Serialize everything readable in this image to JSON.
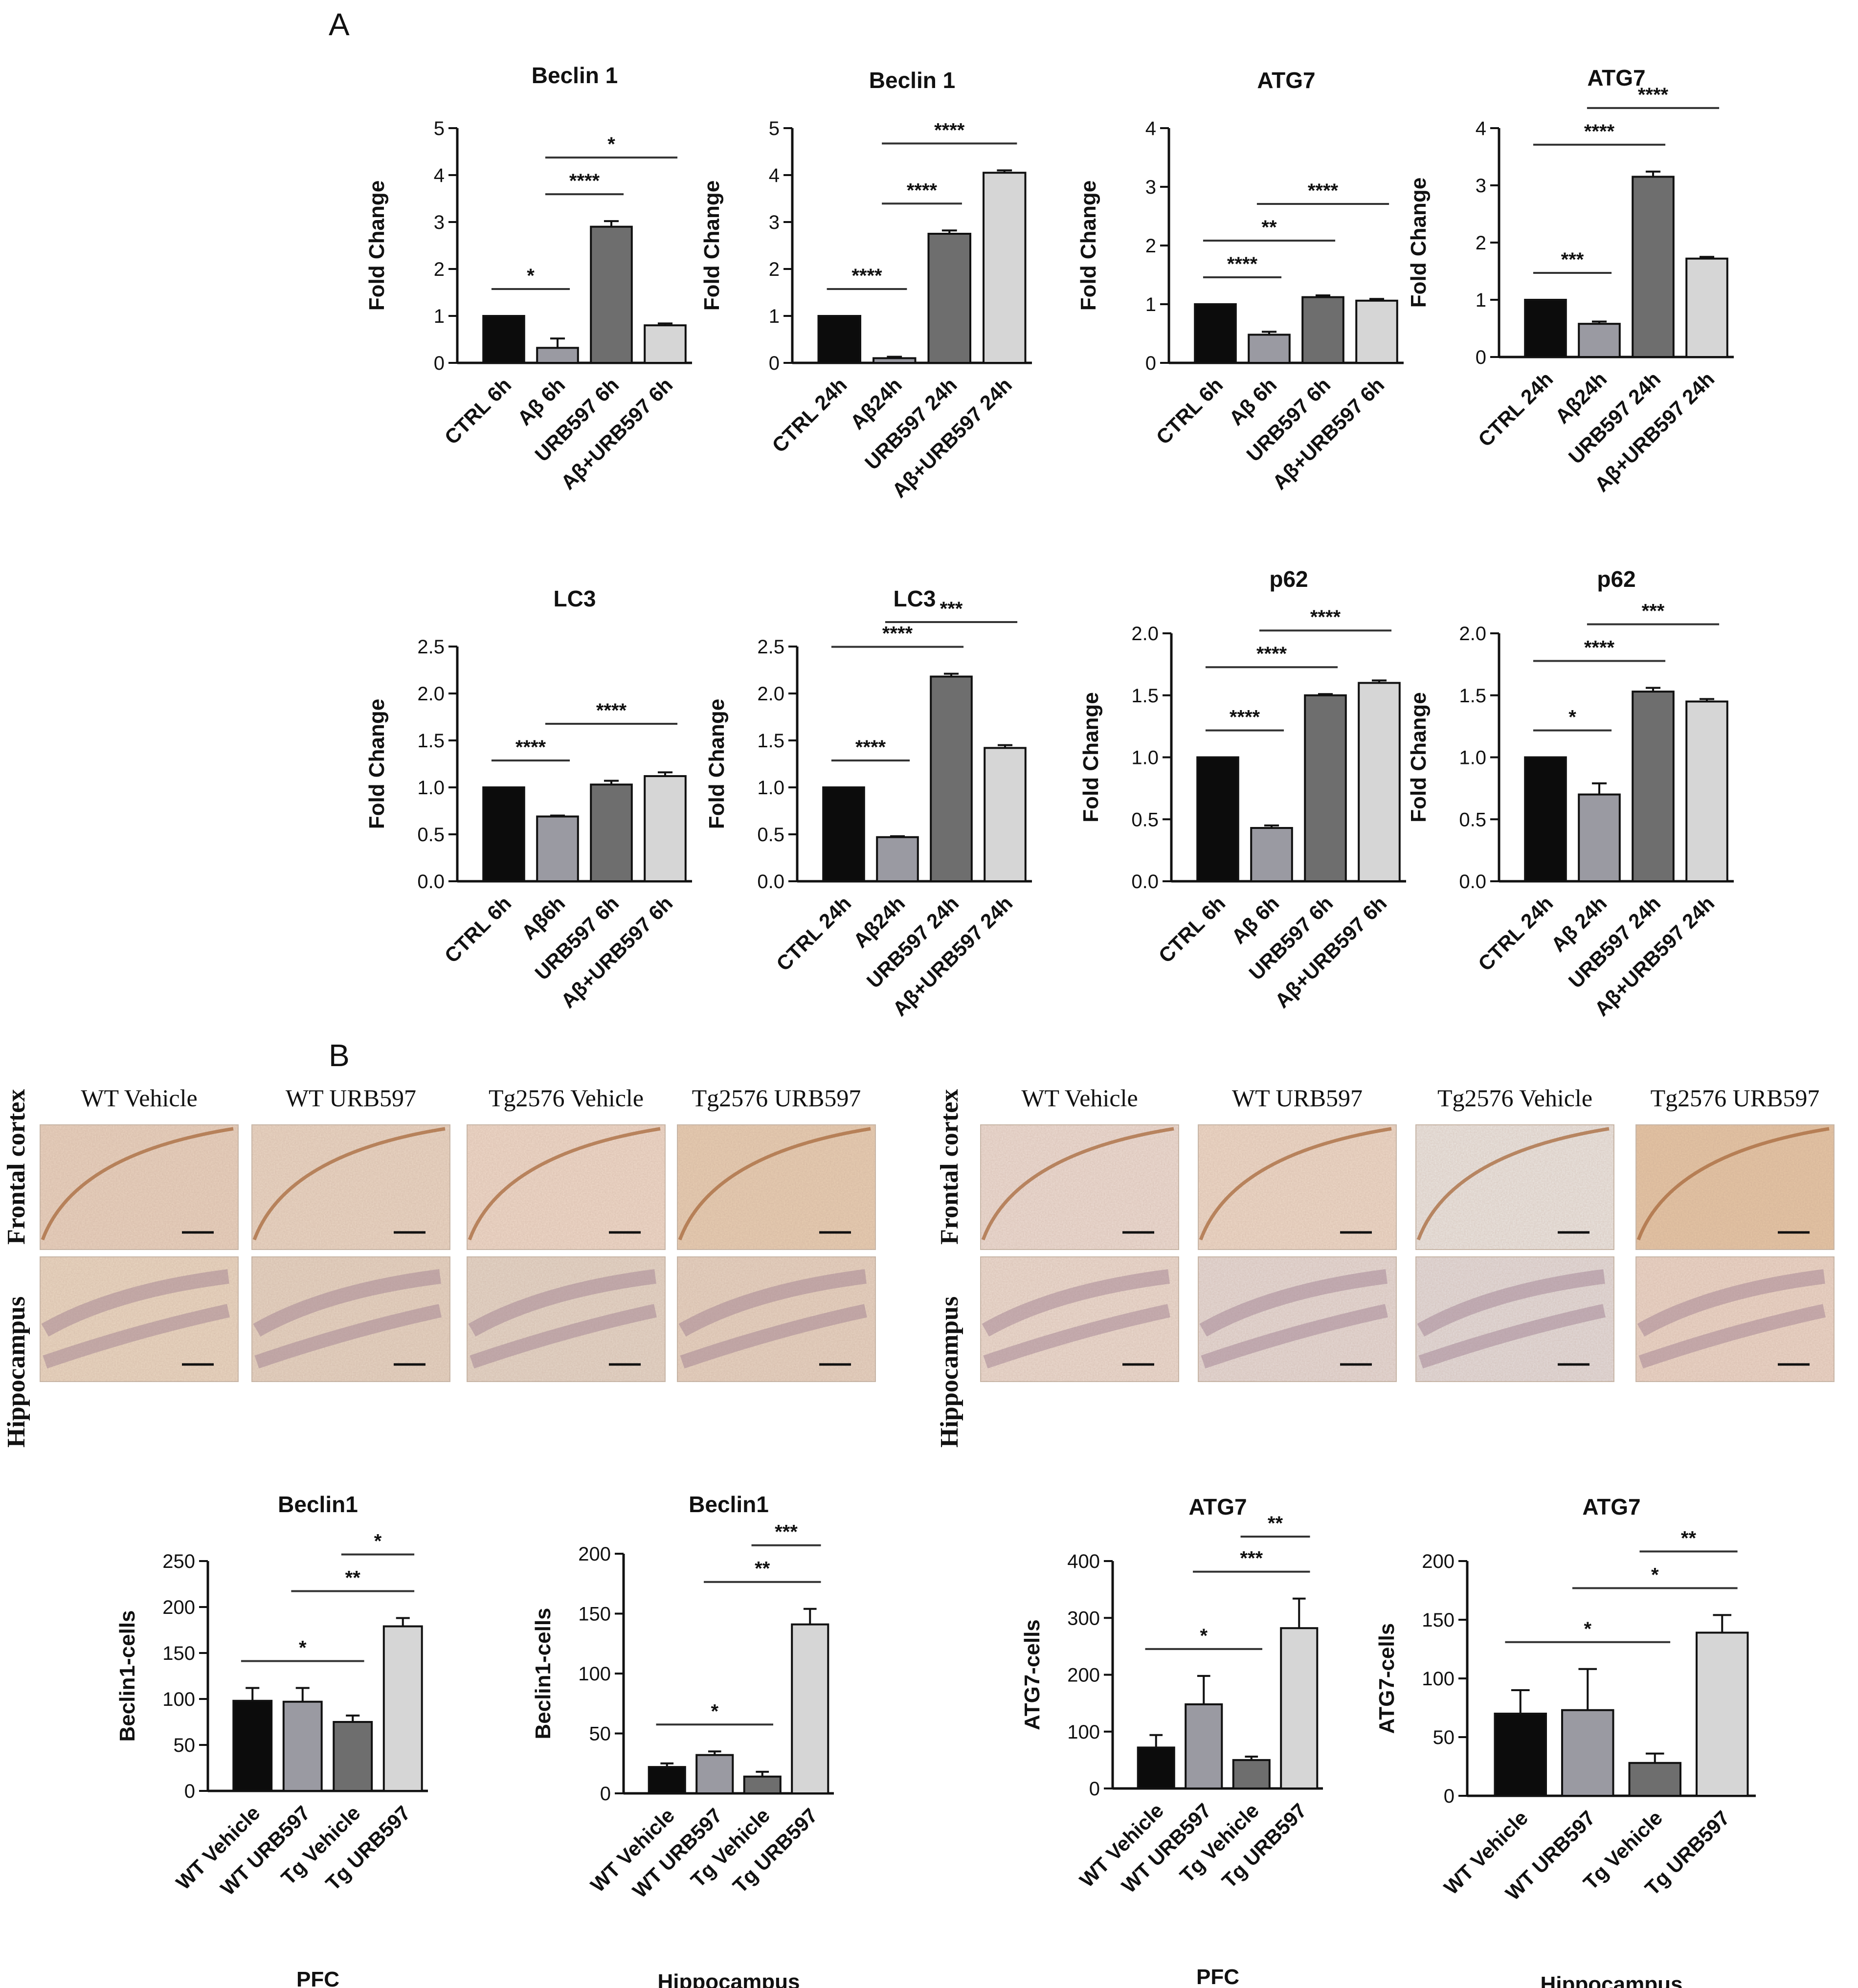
{
  "panels": {
    "A": "A",
    "B": "B"
  },
  "micrographs": {
    "left": {
      "row_labels": [
        "Hippocampus",
        "Frontal cortex"
      ],
      "columns": [
        "WT Vehicle",
        "WT URB597",
        "Tg2576 Vehicle",
        "Tg2576 URB597"
      ]
    },
    "right": {
      "row_labels": [
        "Hippocampus",
        "Frontal cortex"
      ],
      "columns": [
        "WT Vehicle",
        "WT URB597",
        "Tg2576 Vehicle",
        "Tg2576 URB597"
      ]
    }
  },
  "colors": {
    "black": "#0c0c0c",
    "mid_gray": "#9a9aa2",
    "dark_gray": "#6e6e6e",
    "light_gray": "#d6d6d6"
  },
  "chart_data": [
    {
      "id": "beclin1_6h",
      "type": "bar",
      "title": "Beclin 1",
      "xlabel": "",
      "ylabel": "Fold Change",
      "categories": [
        "CTRL 6h",
        "Aβ 6h",
        "URB597 6h",
        "Aβ+URB597 6h"
      ],
      "values": [
        1.0,
        0.32,
        2.9,
        0.8
      ],
      "errors": [
        0,
        0.2,
        0.12,
        0.04
      ],
      "ylim": [
        0,
        5
      ],
      "yticks": [
        "0",
        "1",
        "2",
        "3",
        "4",
        "5"
      ],
      "significance": [
        {
          "from": 0,
          "to": 1,
          "label": "*"
        },
        {
          "from": 1,
          "to": 2,
          "label": "****"
        },
        {
          "from": 1,
          "to": 3,
          "label": "*"
        }
      ]
    },
    {
      "id": "beclin1_24h",
      "type": "bar",
      "title": "Beclin 1",
      "xlabel": "",
      "ylabel": "Fold Change",
      "categories": [
        "CTRL 24h",
        "Aβ24h",
        "URB597 24h",
        "Aβ+URB597 24h"
      ],
      "values": [
        1.0,
        0.1,
        2.75,
        4.05
      ],
      "errors": [
        0,
        0.03,
        0.07,
        0.05
      ],
      "ylim": [
        0,
        5
      ],
      "yticks": [
        "0",
        "1",
        "2",
        "3",
        "4",
        "5"
      ],
      "significance": [
        {
          "from": 0,
          "to": 1,
          "label": "****"
        },
        {
          "from": 1,
          "to": 2,
          "label": "****"
        },
        {
          "from": 1,
          "to": 3,
          "label": "****"
        }
      ]
    },
    {
      "id": "atg7_6h",
      "type": "bar",
      "title": "ATG7",
      "xlabel": "",
      "ylabel": "Fold Change",
      "categories": [
        "CTRL 6h",
        "Aβ 6h",
        "URB597 6h",
        "Aβ+URB597 6h"
      ],
      "values": [
        1.0,
        0.48,
        1.12,
        1.06
      ],
      "errors": [
        0,
        0.05,
        0.03,
        0.03
      ],
      "ylim": [
        0,
        4
      ],
      "yticks": [
        "0",
        "1",
        "2",
        "3",
        "4"
      ],
      "significance": [
        {
          "from": 0,
          "to": 1,
          "label": "****"
        },
        {
          "from": 0,
          "to": 2,
          "label": "**"
        },
        {
          "from": 1,
          "to": 3,
          "label": "****"
        }
      ]
    },
    {
      "id": "atg7_24h",
      "type": "bar",
      "title": "ATG7",
      "xlabel": "",
      "ylabel": "Fold Change",
      "categories": [
        "CTRL 24h",
        "Aβ24h",
        "URB597 24h",
        "Aβ+URB597 24h"
      ],
      "values": [
        1.0,
        0.58,
        3.15,
        1.72
      ],
      "errors": [
        0,
        0.04,
        0.09,
        0.03
      ],
      "ylim": [
        0,
        4
      ],
      "yticks": [
        "0",
        "1",
        "2",
        "3",
        "4"
      ],
      "significance": [
        {
          "from": 0,
          "to": 1,
          "label": "***"
        },
        {
          "from": 0,
          "to": 2,
          "label": "****"
        },
        {
          "from": 1,
          "to": 3,
          "label": "****"
        }
      ]
    },
    {
      "id": "lc3_6h",
      "type": "bar",
      "title": "LC3",
      "xlabel": "",
      "ylabel": "Fold Change",
      "categories": [
        "CTRL 6h",
        "Aβ6h",
        "URB597 6h",
        "Aβ+URB597 6h"
      ],
      "values": [
        1.0,
        0.69,
        1.03,
        1.12
      ],
      "errors": [
        0,
        0.01,
        0.04,
        0.04
      ],
      "ylim": [
        0,
        2.5
      ],
      "yticks": [
        "0.0",
        "0.5",
        "1.0",
        "1.5",
        "2.0",
        "2.5"
      ],
      "significance": [
        {
          "from": 0,
          "to": 1,
          "label": "****"
        },
        {
          "from": 1,
          "to": 3,
          "label": "****"
        }
      ]
    },
    {
      "id": "lc3_24h",
      "type": "bar",
      "title": "LC3",
      "xlabel": "",
      "ylabel": "Fold Change",
      "categories": [
        "CTRL 24h",
        "Aβ24h",
        "URB597 24h",
        "Aβ+URB597 24h"
      ],
      "values": [
        1.0,
        0.47,
        2.18,
        1.42
      ],
      "errors": [
        0,
        0.01,
        0.03,
        0.03
      ],
      "ylim": [
        0,
        2.5
      ],
      "yticks": [
        "0.0",
        "0.5",
        "1.0",
        "1.5",
        "2.0",
        "2.5"
      ],
      "significance": [
        {
          "from": 0,
          "to": 1,
          "label": "****"
        },
        {
          "from": 0,
          "to": 2,
          "label": "****"
        },
        {
          "from": 1,
          "to": 3,
          "label": "***"
        }
      ]
    },
    {
      "id": "p62_6h",
      "type": "bar",
      "title": "p62",
      "xlabel": "",
      "ylabel": "Fold Change",
      "categories": [
        "CTRL 6h",
        "Aβ 6h",
        "URB597 6h",
        "Aβ+URB597 6h"
      ],
      "values": [
        1.0,
        0.43,
        1.5,
        1.6
      ],
      "errors": [
        0,
        0.02,
        0.01,
        0.02
      ],
      "ylim": [
        0,
        2.0
      ],
      "yticks": [
        "0.0",
        "0.5",
        "1.0",
        "1.5",
        "2.0"
      ],
      "significance": [
        {
          "from": 0,
          "to": 1,
          "label": "****"
        },
        {
          "from": 0,
          "to": 2,
          "label": "****"
        },
        {
          "from": 1,
          "to": 3,
          "label": "****"
        }
      ]
    },
    {
      "id": "p62_24h",
      "type": "bar",
      "title": "p62",
      "xlabel": "",
      "ylabel": "Fold Change",
      "categories": [
        "CTRL 24h",
        "Aβ 24h",
        "URB597 24h",
        "Aβ+URB597 24h"
      ],
      "values": [
        1.0,
        0.7,
        1.53,
        1.45
      ],
      "errors": [
        0,
        0.09,
        0.03,
        0.02
      ],
      "ylim": [
        0,
        2.0
      ],
      "yticks": [
        "0.0",
        "0.5",
        "1.0",
        "1.5",
        "2.0"
      ],
      "significance": [
        {
          "from": 0,
          "to": 1,
          "label": "*"
        },
        {
          "from": 0,
          "to": 2,
          "label": "****"
        },
        {
          "from": 1,
          "to": 3,
          "label": "***"
        }
      ]
    },
    {
      "id": "beclin1_pfc",
      "type": "bar",
      "title": "Beclin1",
      "xlabel": "PFC",
      "ylabel": "Beclin1-cells",
      "categories": [
        "WT Vehicle",
        "WT URB597",
        "Tg Vehicle",
        "Tg URB597"
      ],
      "values": [
        98,
        97,
        75,
        179
      ],
      "errors": [
        14,
        15,
        7,
        9
      ],
      "ylim": [
        0,
        250
      ],
      "yticks": [
        "0",
        "50",
        "100",
        "150",
        "200",
        "250"
      ],
      "significance": [
        {
          "from": 0,
          "to": 2,
          "label": "*"
        },
        {
          "from": 1,
          "to": 3,
          "label": "**"
        },
        {
          "from": 2,
          "to": 3,
          "label": "*"
        }
      ]
    },
    {
      "id": "beclin1_hippo",
      "type": "bar",
      "title": "Beclin1",
      "xlabel": "Hippocampus",
      "ylabel": "Beclin1-cells",
      "categories": [
        "WT Vehicle",
        "WT URB597",
        "Tg Vehicle",
        "Tg URB597"
      ],
      "values": [
        22,
        32,
        14,
        141
      ],
      "errors": [
        3,
        3,
        4,
        13
      ],
      "ylim": [
        0,
        200
      ],
      "yticks": [
        "0",
        "50",
        "100",
        "150",
        "200"
      ],
      "significance": [
        {
          "from": 0,
          "to": 2,
          "label": "*"
        },
        {
          "from": 1,
          "to": 3,
          "label": "**"
        },
        {
          "from": 2,
          "to": 3,
          "label": "***"
        }
      ]
    },
    {
      "id": "atg7_pfc",
      "type": "bar",
      "title": "ATG7",
      "xlabel": "PFC",
      "ylabel": "ATG7-cells",
      "categories": [
        "WT Vehicle",
        "WT URB597",
        "Tg Vehicle",
        "Tg URB597"
      ],
      "values": [
        72,
        148,
        50,
        282
      ],
      "errors": [
        22,
        50,
        6,
        52
      ],
      "ylim": [
        0,
        400
      ],
      "yticks": [
        "0",
        "100",
        "200",
        "300",
        "400"
      ],
      "significance": [
        {
          "from": 0,
          "to": 2,
          "label": "*"
        },
        {
          "from": 1,
          "to": 3,
          "label": "***"
        },
        {
          "from": 2,
          "to": 3,
          "label": "**"
        }
      ]
    },
    {
      "id": "atg7_hippo",
      "type": "bar",
      "title": "ATG7",
      "xlabel": "Hippocampus",
      "ylabel": "ATG7-cells",
      "categories": [
        "WT Vehicle",
        "WT URB597",
        "Tg Vehicle",
        "Tg URB597"
      ],
      "values": [
        70,
        73,
        28,
        139
      ],
      "errors": [
        20,
        35,
        8,
        15
      ],
      "ylim": [
        0,
        200
      ],
      "yticks": [
        "0",
        "50",
        "100",
        "150",
        "200"
      ],
      "significance": [
        {
          "from": 0,
          "to": 2,
          "label": "*"
        },
        {
          "from": 1,
          "to": 3,
          "label": "*"
        },
        {
          "from": 2,
          "to": 3,
          "label": "**"
        }
      ]
    }
  ]
}
